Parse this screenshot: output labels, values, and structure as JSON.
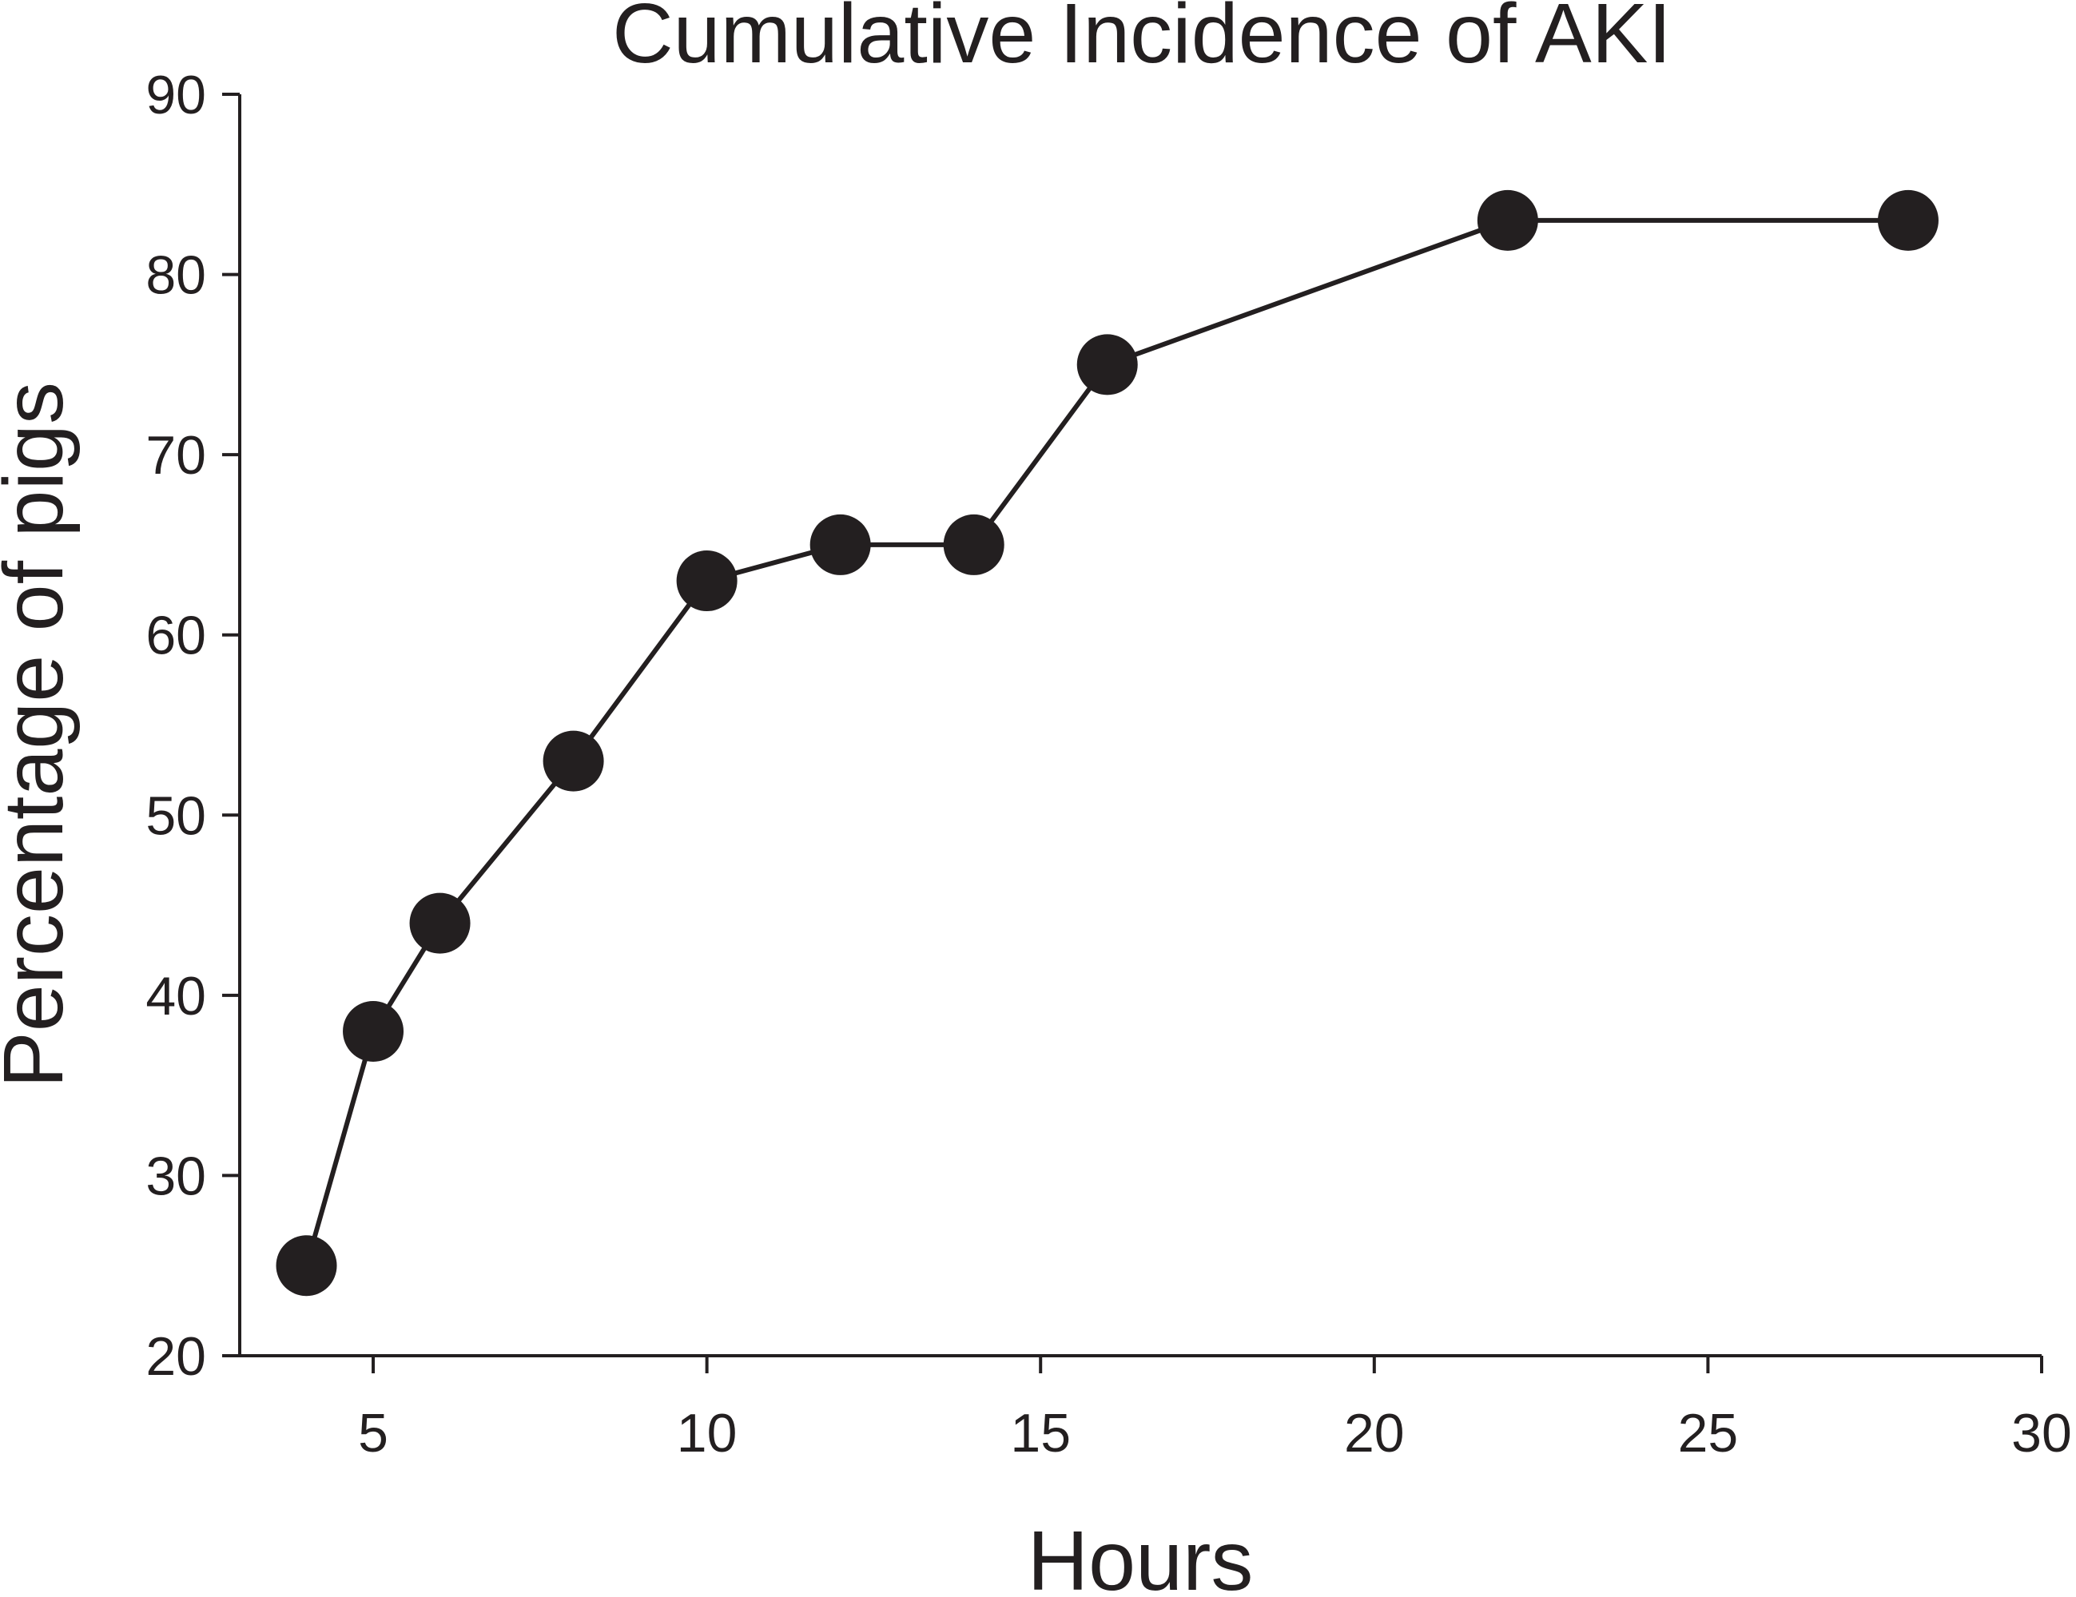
{
  "chart_data": {
    "type": "line",
    "title": "Cumulative Incidence of AKI",
    "xlabel": "Hours",
    "ylabel": "Percentage of pigs",
    "xlim": [
      3,
      30
    ],
    "ylim": [
      20,
      90
    ],
    "xticks": [
      5,
      10,
      15,
      20,
      25,
      30
    ],
    "yticks": [
      20,
      30,
      40,
      50,
      60,
      70,
      80,
      90
    ],
    "grid": false,
    "series": [
      {
        "x": [
          4,
          5,
          6,
          8,
          10,
          12,
          14,
          16,
          22,
          28
        ],
        "y": [
          25,
          38,
          44,
          53,
          63,
          65,
          65,
          75,
          83,
          83
        ]
      }
    ],
    "colors": {
      "ink": "#231f20",
      "background": "#ffffff"
    }
  }
}
